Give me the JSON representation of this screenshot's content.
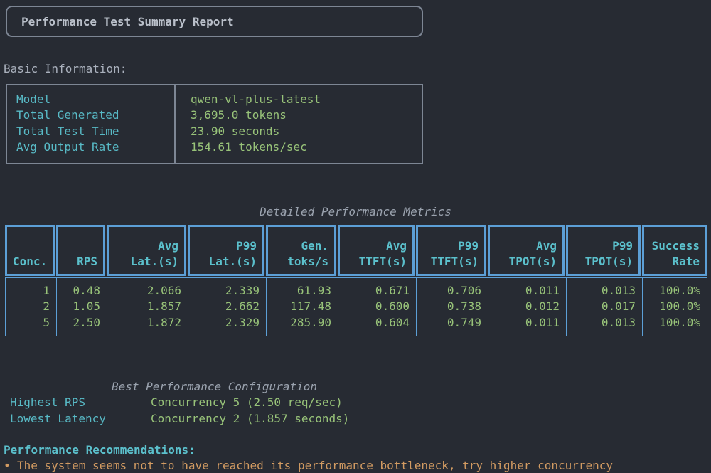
{
  "report": {
    "window_title": "Performance Test Summary Report"
  },
  "basic_info": {
    "heading": "Basic Information:",
    "rows": [
      {
        "label": "Model",
        "value": "qwen-vl-plus-latest"
      },
      {
        "label": "Total Generated",
        "value": "3,695.0 tokens"
      },
      {
        "label": "Total Test Time",
        "value": "23.90 seconds"
      },
      {
        "label": "Avg Output Rate",
        "value": "154.61 tokens/sec"
      }
    ]
  },
  "metrics": {
    "section_title": "Detailed Performance Metrics",
    "headers": [
      {
        "top": "",
        "bottom": "Conc."
      },
      {
        "top": "",
        "bottom": "RPS"
      },
      {
        "top": "Avg",
        "bottom": "Lat.(s)"
      },
      {
        "top": "P99",
        "bottom": "Lat.(s)"
      },
      {
        "top": "Gen.",
        "bottom": "toks/s"
      },
      {
        "top": "Avg",
        "bottom": "TTFT(s)"
      },
      {
        "top": "P99",
        "bottom": "TTFT(s)"
      },
      {
        "top": "Avg",
        "bottom": "TPOT(s)"
      },
      {
        "top": "P99",
        "bottom": "TPOT(s)"
      },
      {
        "top": "Success",
        "bottom": "Rate"
      }
    ],
    "rows": [
      [
        "1",
        "0.48",
        "2.066",
        "2.339",
        "61.93",
        "0.671",
        "0.706",
        "0.011",
        "0.013",
        "100.0%"
      ],
      [
        "2",
        "1.05",
        "1.857",
        "2.662",
        "117.48",
        "0.600",
        "0.738",
        "0.012",
        "0.017",
        "100.0%"
      ],
      [
        "5",
        "2.50",
        "1.872",
        "2.329",
        "285.90",
        "0.604",
        "0.749",
        "0.011",
        "0.013",
        "100.0%"
      ]
    ]
  },
  "best_config": {
    "section_title": "Best Performance Configuration",
    "rows": [
      {
        "label": "Highest RPS",
        "value": "Concurrency 5 (2.50 req/sec)"
      },
      {
        "label": "Lowest Latency",
        "value": "Concurrency 2 (1.857 seconds)"
      }
    ]
  },
  "recommendations": {
    "heading": "Performance Recommendations:",
    "bullet": "•",
    "items": [
      "The system seems not to have reached its performance bottleneck, try higher concurrency"
    ]
  },
  "colors": {
    "background": "#272b33",
    "foreground_gray": "#abb2bf",
    "label_cyan": "#58bac6",
    "value_green": "#98c379",
    "table_border_blue": "#5c9fd6",
    "box_border_gray": "#7d8694",
    "recommendation_orange": "#d29b62"
  }
}
